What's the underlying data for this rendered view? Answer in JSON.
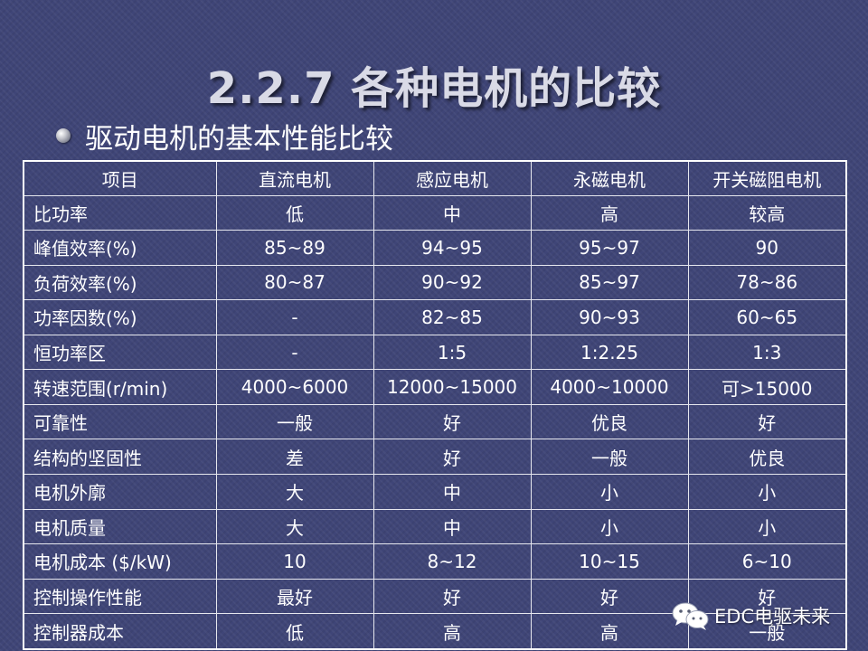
{
  "title": "2.2.7 各种电机的比较",
  "subtitle": "驱动电机的基本性能比较",
  "colors": {
    "white": "#ffffff",
    "yellow": "#ffc000",
    "green": "#00e64d",
    "background": "#3f4577"
  },
  "table": {
    "header": [
      "项目",
      "直流电机",
      "感应电机",
      "永磁电机",
      "开关磁阻电机"
    ],
    "rows": [
      {
        "label": "比功率",
        "cells": [
          {
            "v": "低",
            "c": "y"
          },
          {
            "v": "中",
            "c": "w"
          },
          {
            "v": "高",
            "c": "g"
          },
          {
            "v": "较高",
            "c": "w"
          }
        ]
      },
      {
        "label": "峰值效率(%)",
        "cells": [
          {
            "v": "85~89",
            "c": "y"
          },
          {
            "v": "94~95",
            "c": "w"
          },
          {
            "v": "95~97",
            "c": "g"
          },
          {
            "v": "90",
            "c": "w"
          }
        ]
      },
      {
        "label": "负荷效率(%)",
        "cells": [
          {
            "v": "80~87",
            "c": "w"
          },
          {
            "v": "90~92",
            "c": "w"
          },
          {
            "v": "85~97",
            "c": "g"
          },
          {
            "v": "78~86",
            "c": "y"
          }
        ]
      },
      {
        "label": "功率因数(%)",
        "cells": [
          {
            "v": "-",
            "c": "w"
          },
          {
            "v": "82~85",
            "c": "w"
          },
          {
            "v": "90~93",
            "c": "w"
          },
          {
            "v": "60~65",
            "c": "w"
          }
        ]
      },
      {
        "label": "恒功率区",
        "cells": [
          {
            "v": "-",
            "c": "w"
          },
          {
            "v": "1:5",
            "c": "w"
          },
          {
            "v": "1:2.25",
            "c": "w"
          },
          {
            "v": "1:3",
            "c": "w"
          }
        ]
      },
      {
        "label": "转速范围(r/min)",
        "cells": [
          {
            "v": "4000~6000",
            "c": "y"
          },
          {
            "v": "12000~15000",
            "c": "w"
          },
          {
            "v": "4000~10000",
            "c": "w"
          },
          {
            "v": "可>15000",
            "c": "g"
          }
        ]
      },
      {
        "label": "可靠性",
        "cells": [
          {
            "v": "一般",
            "c": "y"
          },
          {
            "v": "好",
            "c": "w"
          },
          {
            "v": "优良",
            "c": "g"
          },
          {
            "v": "好",
            "c": "w"
          }
        ]
      },
      {
        "label": "结构的坚固性",
        "cells": [
          {
            "v": "差",
            "c": "y"
          },
          {
            "v": "好",
            "c": "w"
          },
          {
            "v": "一般",
            "c": "w"
          },
          {
            "v": "优良",
            "c": "g"
          }
        ]
      },
      {
        "label": "电机外廓",
        "cells": [
          {
            "v": "大",
            "c": "y"
          },
          {
            "v": "中",
            "c": "w"
          },
          {
            "v": "小",
            "c": "g"
          },
          {
            "v": "小",
            "c": "g"
          }
        ]
      },
      {
        "label": "电机质量",
        "cells": [
          {
            "v": "大",
            "c": "y"
          },
          {
            "v": "中",
            "c": "w"
          },
          {
            "v": "小",
            "c": "g"
          },
          {
            "v": "小",
            "c": "g"
          }
        ]
      },
      {
        "label": "电机成本 ($/kW)",
        "cells": [
          {
            "v": "10",
            "c": "w"
          },
          {
            "v": "8~12",
            "c": "w"
          },
          {
            "v": "10~15",
            "c": "y"
          },
          {
            "v": "6~10",
            "c": "g"
          }
        ]
      },
      {
        "label": "控制操作性能",
        "cells": [
          {
            "v": "最好",
            "c": "g"
          },
          {
            "v": "好",
            "c": "w"
          },
          {
            "v": "好",
            "c": "w"
          },
          {
            "v": "好",
            "c": "w"
          }
        ]
      },
      {
        "label": "控制器成本",
        "cells": [
          {
            "v": "低",
            "c": "g"
          },
          {
            "v": "高",
            "c": "y"
          },
          {
            "v": "高",
            "c": "y"
          },
          {
            "v": "一般",
            "c": "w"
          }
        ]
      }
    ]
  },
  "watermark": {
    "text": "EDC电驱未来",
    "icon": "wechat-icon"
  }
}
